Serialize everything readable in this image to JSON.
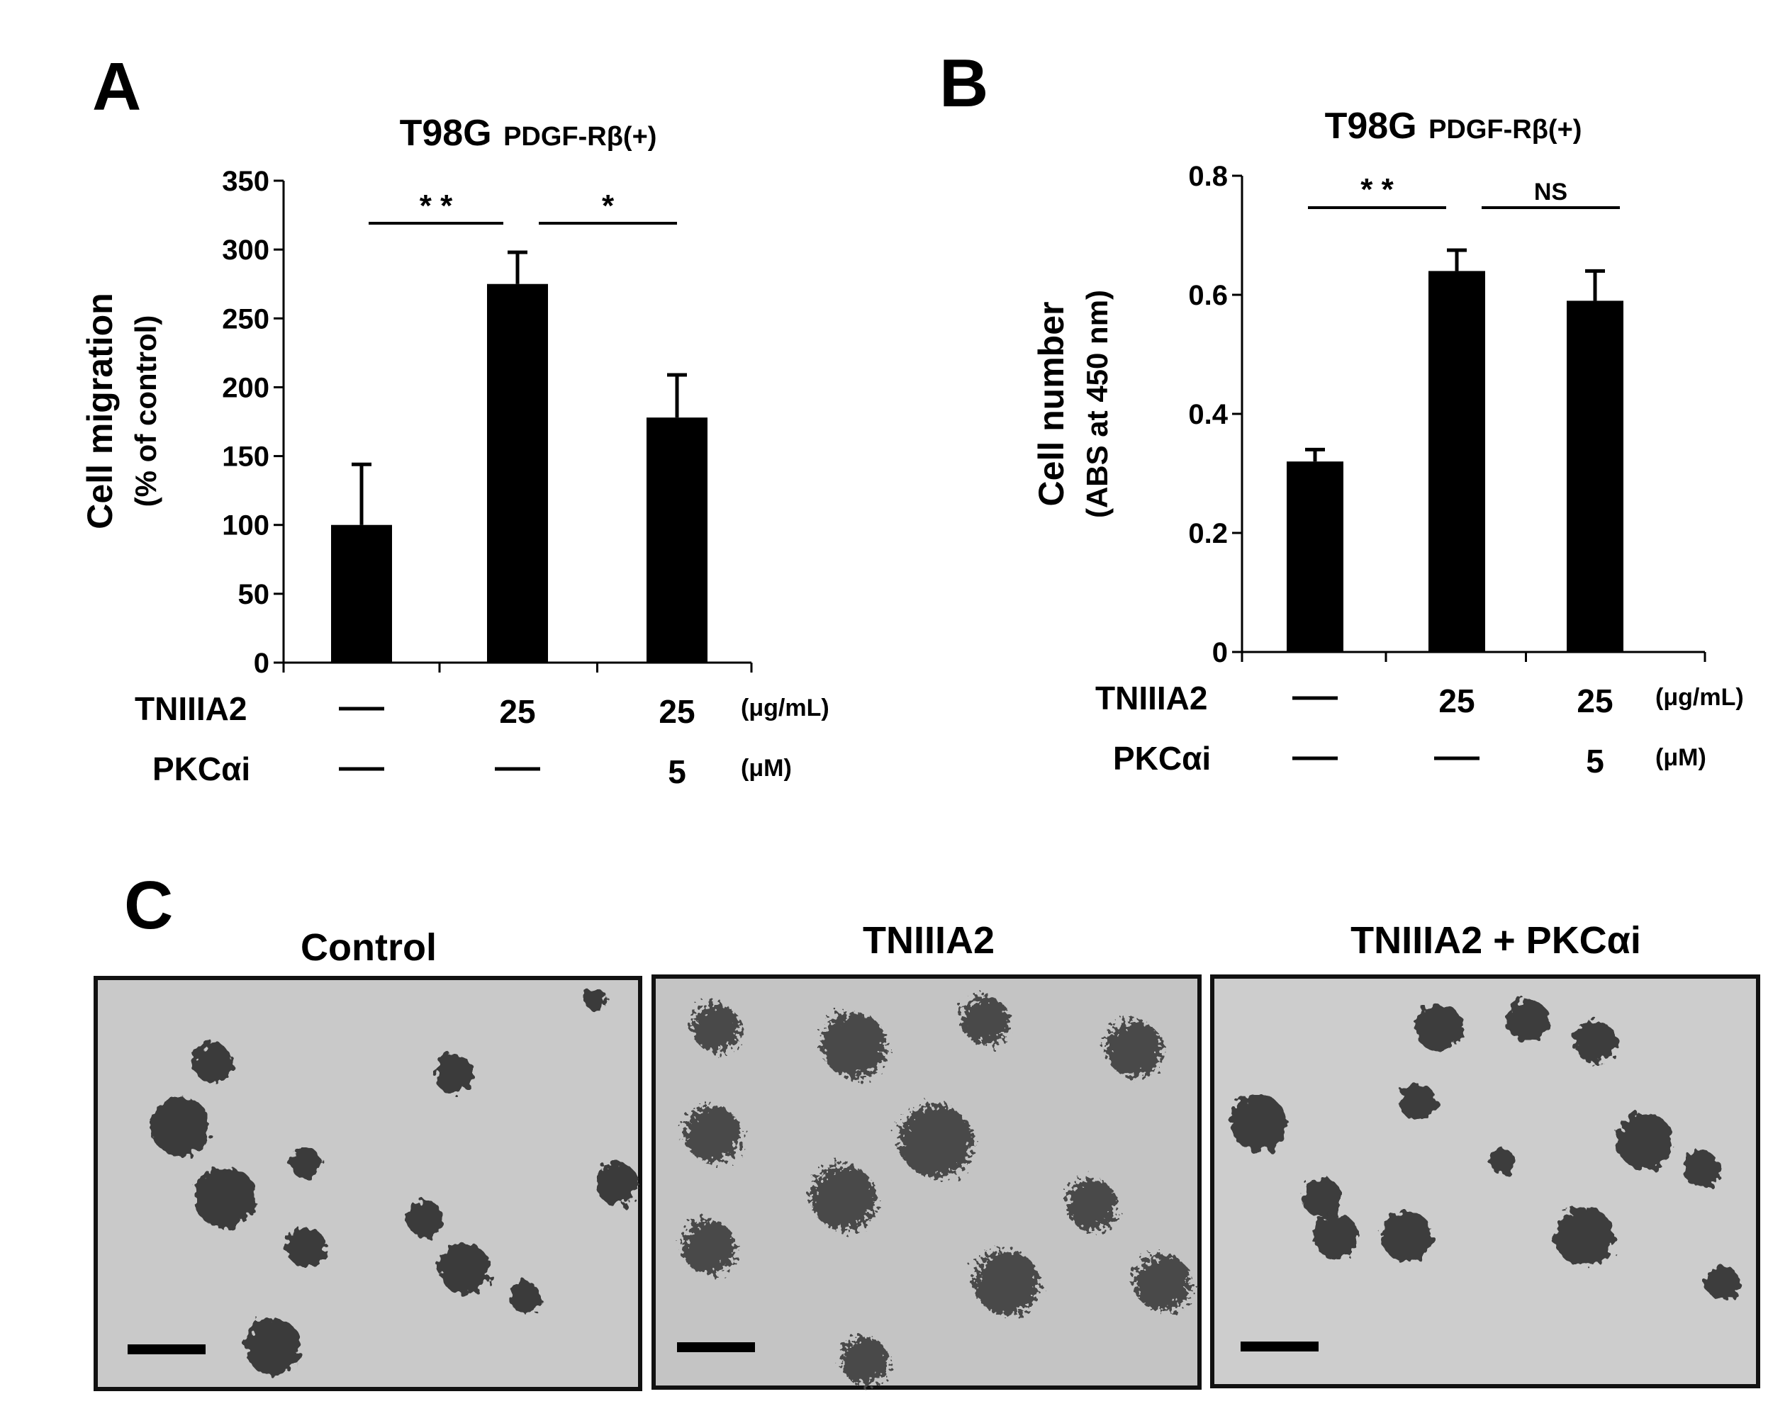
{
  "panel_letters": [
    "A",
    "B",
    "C"
  ],
  "chart_data": [
    {
      "type": "bar",
      "panel": "A",
      "title": "T98G",
      "title_sub": "PDGF-Rβ(+)",
      "ylabel": "Cell migration",
      "ylabel_sub": "(% of control)",
      "ylim": [
        0,
        350
      ],
      "yticks": [
        0,
        50,
        100,
        150,
        200,
        250,
        300,
        350
      ],
      "values": [
        100,
        275,
        178
      ],
      "errors": [
        44,
        23,
        31
      ],
      "rows": [
        {
          "label": "TNIIIA2",
          "cells": [
            "—",
            "25",
            "25"
          ],
          "unit": "(μg/mL)"
        },
        {
          "label": "PKCαi",
          "cells": [
            "—",
            "—",
            "5"
          ],
          "unit": "(μM)"
        }
      ],
      "significance": [
        {
          "from": 0,
          "to": 1,
          "label": "* *"
        },
        {
          "from": 1,
          "to": 2,
          "label": "*"
        }
      ]
    },
    {
      "type": "bar",
      "panel": "B",
      "title": "T98G",
      "title_sub": "PDGF-Rβ(+)",
      "ylabel": "Cell number",
      "ylabel_sub": "(ABS at 450 nm)",
      "ylim": [
        0,
        0.8
      ],
      "yticks": [
        "0",
        "0.2",
        "0.4",
        "0.6",
        "0.8"
      ],
      "values": [
        0.32,
        0.64,
        0.59
      ],
      "errors": [
        0.02,
        0.035,
        0.05
      ],
      "rows": [
        {
          "label": "TNIIIA2",
          "cells": [
            "—",
            "25",
            "25"
          ],
          "unit": "(μg/mL)"
        },
        {
          "label": "PKCαi",
          "cells": [
            "—",
            "—",
            "5"
          ],
          "unit": "(μM)"
        }
      ],
      "significance": [
        {
          "from": 0,
          "to": 1,
          "label": "* *"
        },
        {
          "from": 1,
          "to": 2,
          "label": "NS"
        }
      ]
    }
  ],
  "micrographs": {
    "titles": [
      "Control",
      "TNIIIA2",
      "TNIIIA2 + PKCαi"
    ]
  }
}
